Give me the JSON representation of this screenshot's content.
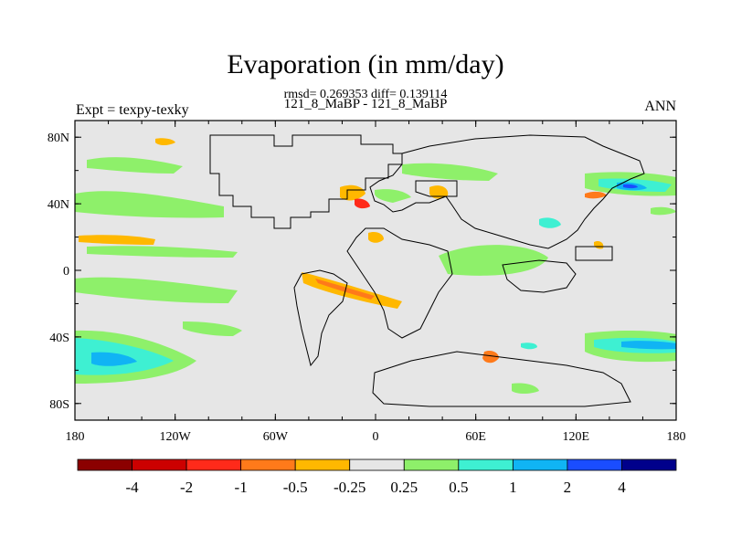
{
  "chart_data": {
    "type": "heatmap",
    "title": "Evaporation (in mm/day)",
    "subtitle_line1": "rmsd= 0.269353 diff= 0.139114",
    "subtitle_line2": "121_8_MaBP - 121_8_MaBP",
    "left_label": "Expt = texpy-texky",
    "right_label": "ANN",
    "x_ticks": [
      "180",
      "120W",
      "60W",
      "0",
      "60E",
      "120E",
      "180"
    ],
    "y_ticks": [
      "80N",
      "40N",
      "0",
      "40S",
      "80S"
    ],
    "xlim": [
      -180,
      180
    ],
    "ylim": [
      -90,
      90
    ],
    "colorbar": {
      "levels": [
        "-4",
        "-2",
        "-1",
        "-0.5",
        "-0.25",
        "0.25",
        "0.5",
        "1",
        "2",
        "4"
      ],
      "colors": [
        "#8b0000",
        "#cc0000",
        "#ff2a1a",
        "#ff7a1a",
        "#ffb800",
        "#e6e6e6",
        "#8ef06a",
        "#3ef0d2",
        "#10b4f4",
        "#1a4dff",
        "#00008b"
      ]
    },
    "features": [
      {
        "name": "north-pacific-band",
        "level": "0.25",
        "lon": -150,
        "lat": 40
      },
      {
        "name": "south-pacific-high",
        "level": "1",
        "lon": -150,
        "lat": -50
      },
      {
        "name": "tropical-atlantic-negative",
        "level": "-0.5",
        "lon": -25,
        "lat": -15
      },
      {
        "name": "mediterranean-negative",
        "level": "-0.25",
        "lon": -10,
        "lat": 45
      },
      {
        "name": "indian-ocean-band",
        "level": "0.25",
        "lon": 65,
        "lat": 2
      },
      {
        "name": "southern-ocean-high",
        "level": "1",
        "lon": 150,
        "lat": -45
      },
      {
        "name": "north-pacific-kuroshio",
        "level": "2",
        "lon": 150,
        "lat": 50
      },
      {
        "name": "south-indian-negative",
        "level": "-0.5",
        "lon": 70,
        "lat": -55
      }
    ]
  }
}
